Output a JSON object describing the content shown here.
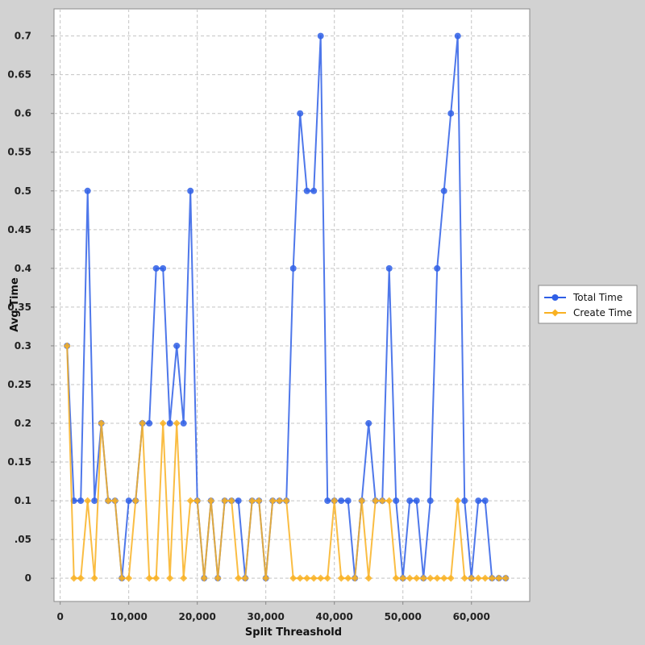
{
  "chart_data": {
    "type": "line",
    "title": "",
    "xlabel": "Split Threashold",
    "ylabel": "Avg Time",
    "xlim": [
      -900,
      68500
    ],
    "ylim": [
      -0.03,
      0.735
    ],
    "x_ticks": [
      0,
      10000,
      20000,
      30000,
      40000,
      50000,
      60000
    ],
    "x_tick_labels": [
      "0",
      "10,000",
      "20,000",
      "30,000",
      "40,000",
      "50,000",
      "60,000"
    ],
    "y_ticks": [
      0,
      0.05,
      0.1,
      0.15,
      0.2,
      0.25,
      0.3,
      0.35,
      0.4,
      0.45,
      0.5,
      0.55,
      0.6,
      0.65,
      0.7
    ],
    "y_tick_labels": [
      "0",
      ".05",
      "0.1",
      "0.15",
      "0.2",
      "0.25",
      "0.3",
      "0.35",
      "0.4",
      "0.45",
      "0.5",
      "0.55",
      "0.6",
      "0.65",
      "0.7"
    ],
    "grid": true,
    "legend_position": "right",
    "x": [
      1000,
      2000,
      3000,
      4000,
      5000,
      6000,
      7000,
      8000,
      9000,
      10000,
      11000,
      12000,
      13000,
      14000,
      15000,
      16000,
      17000,
      18000,
      19000,
      20000,
      21000,
      22000,
      23000,
      24000,
      25000,
      26000,
      27000,
      28000,
      29000,
      30000,
      31000,
      32000,
      33000,
      34000,
      35000,
      36000,
      37000,
      38000,
      39000,
      40000,
      41000,
      42000,
      43000,
      44000,
      45000,
      46000,
      47000,
      48000,
      49000,
      50000,
      51000,
      52000,
      53000,
      54000,
      55000,
      56000,
      57000,
      58000,
      59000,
      60000,
      61000,
      62000,
      63000,
      64000,
      65000
    ],
    "series": [
      {
        "name": "Total Time",
        "color": "#2f5fe6",
        "marker": "circle",
        "values": [
          0.3,
          0.1,
          0.1,
          0.5,
          0.1,
          0.2,
          0.1,
          0.1,
          0.0,
          0.1,
          0.1,
          0.2,
          0.2,
          0.4,
          0.4,
          0.2,
          0.3,
          0.2,
          0.5,
          0.1,
          0.0,
          0.1,
          0.0,
          0.1,
          0.1,
          0.1,
          0.0,
          0.1,
          0.1,
          0.0,
          0.1,
          0.1,
          0.1,
          0.4,
          0.6,
          0.5,
          0.5,
          0.7,
          0.1,
          0.1,
          0.1,
          0.1,
          0.0,
          0.1,
          0.2,
          0.1,
          0.1,
          0.4,
          0.1,
          0.0,
          0.1,
          0.1,
          0.0,
          0.1,
          0.4,
          0.5,
          0.6,
          0.7,
          0.1,
          0.0,
          0.1,
          0.1,
          0.0,
          0.0,
          0.0
        ]
      },
      {
        "name": "Create Time",
        "color": "#f9b122",
        "marker": "diamond",
        "values": [
          0.3,
          0.0,
          0.0,
          0.1,
          0.0,
          0.2,
          0.1,
          0.1,
          0.0,
          0.0,
          0.1,
          0.2,
          0.0,
          0.0,
          0.2,
          0.0,
          0.2,
          0.0,
          0.1,
          0.1,
          0.0,
          0.1,
          0.0,
          0.1,
          0.1,
          0.0,
          0.0,
          0.1,
          0.1,
          0.0,
          0.1,
          0.1,
          0.1,
          0.0,
          0.0,
          0.0,
          0.0,
          0.0,
          0.0,
          0.1,
          0.0,
          0.0,
          0.0,
          0.1,
          0.0,
          0.1,
          0.1,
          0.1,
          0.0,
          0.0,
          0.0,
          0.0,
          0.0,
          0.0,
          0.0,
          0.0,
          0.0,
          0.1,
          0.0,
          0.0,
          0.0,
          0.0,
          0.0,
          0.0,
          0.0
        ]
      }
    ]
  }
}
